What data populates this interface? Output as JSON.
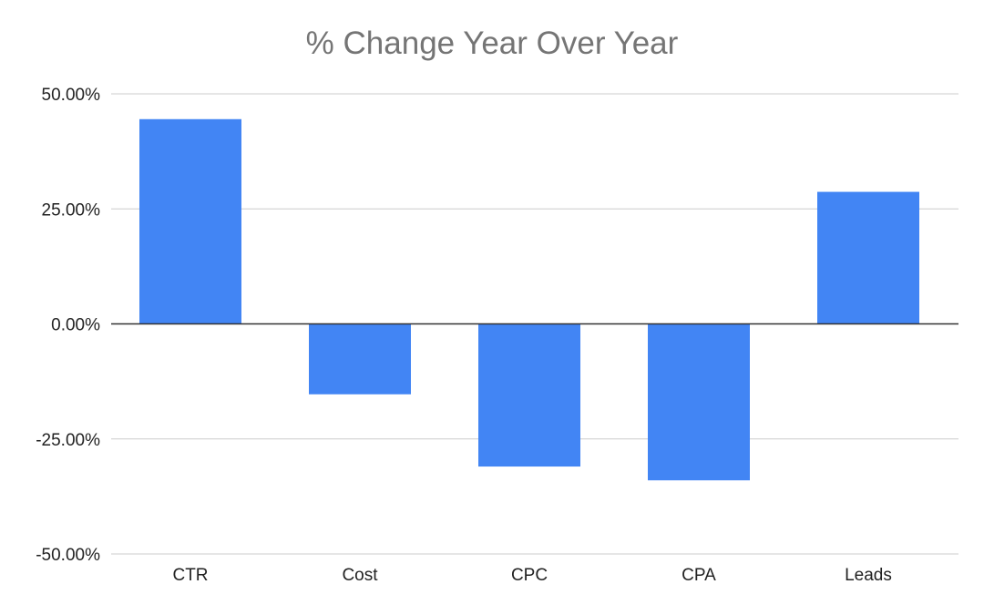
{
  "chart_data": {
    "type": "bar",
    "title": "% Change Year Over Year",
    "xlabel": "",
    "ylabel": "",
    "categories": [
      "CTR",
      "Cost",
      "CPC",
      "CPA",
      "Leads"
    ],
    "values": [
      44.5,
      -15.3,
      -31.0,
      -34.0,
      28.7
    ],
    "ylim": [
      -50,
      50
    ],
    "yticks": [
      50,
      25,
      0,
      -25,
      -50
    ],
    "ytick_labels": [
      "50.00%",
      "25.00%",
      "0.00%",
      "-25.00%",
      "-50.00%"
    ],
    "grid": true,
    "legend": "none",
    "bar_color": "#4285f4",
    "grid_color": "#cccccc",
    "zero_line_color": "#333333"
  }
}
